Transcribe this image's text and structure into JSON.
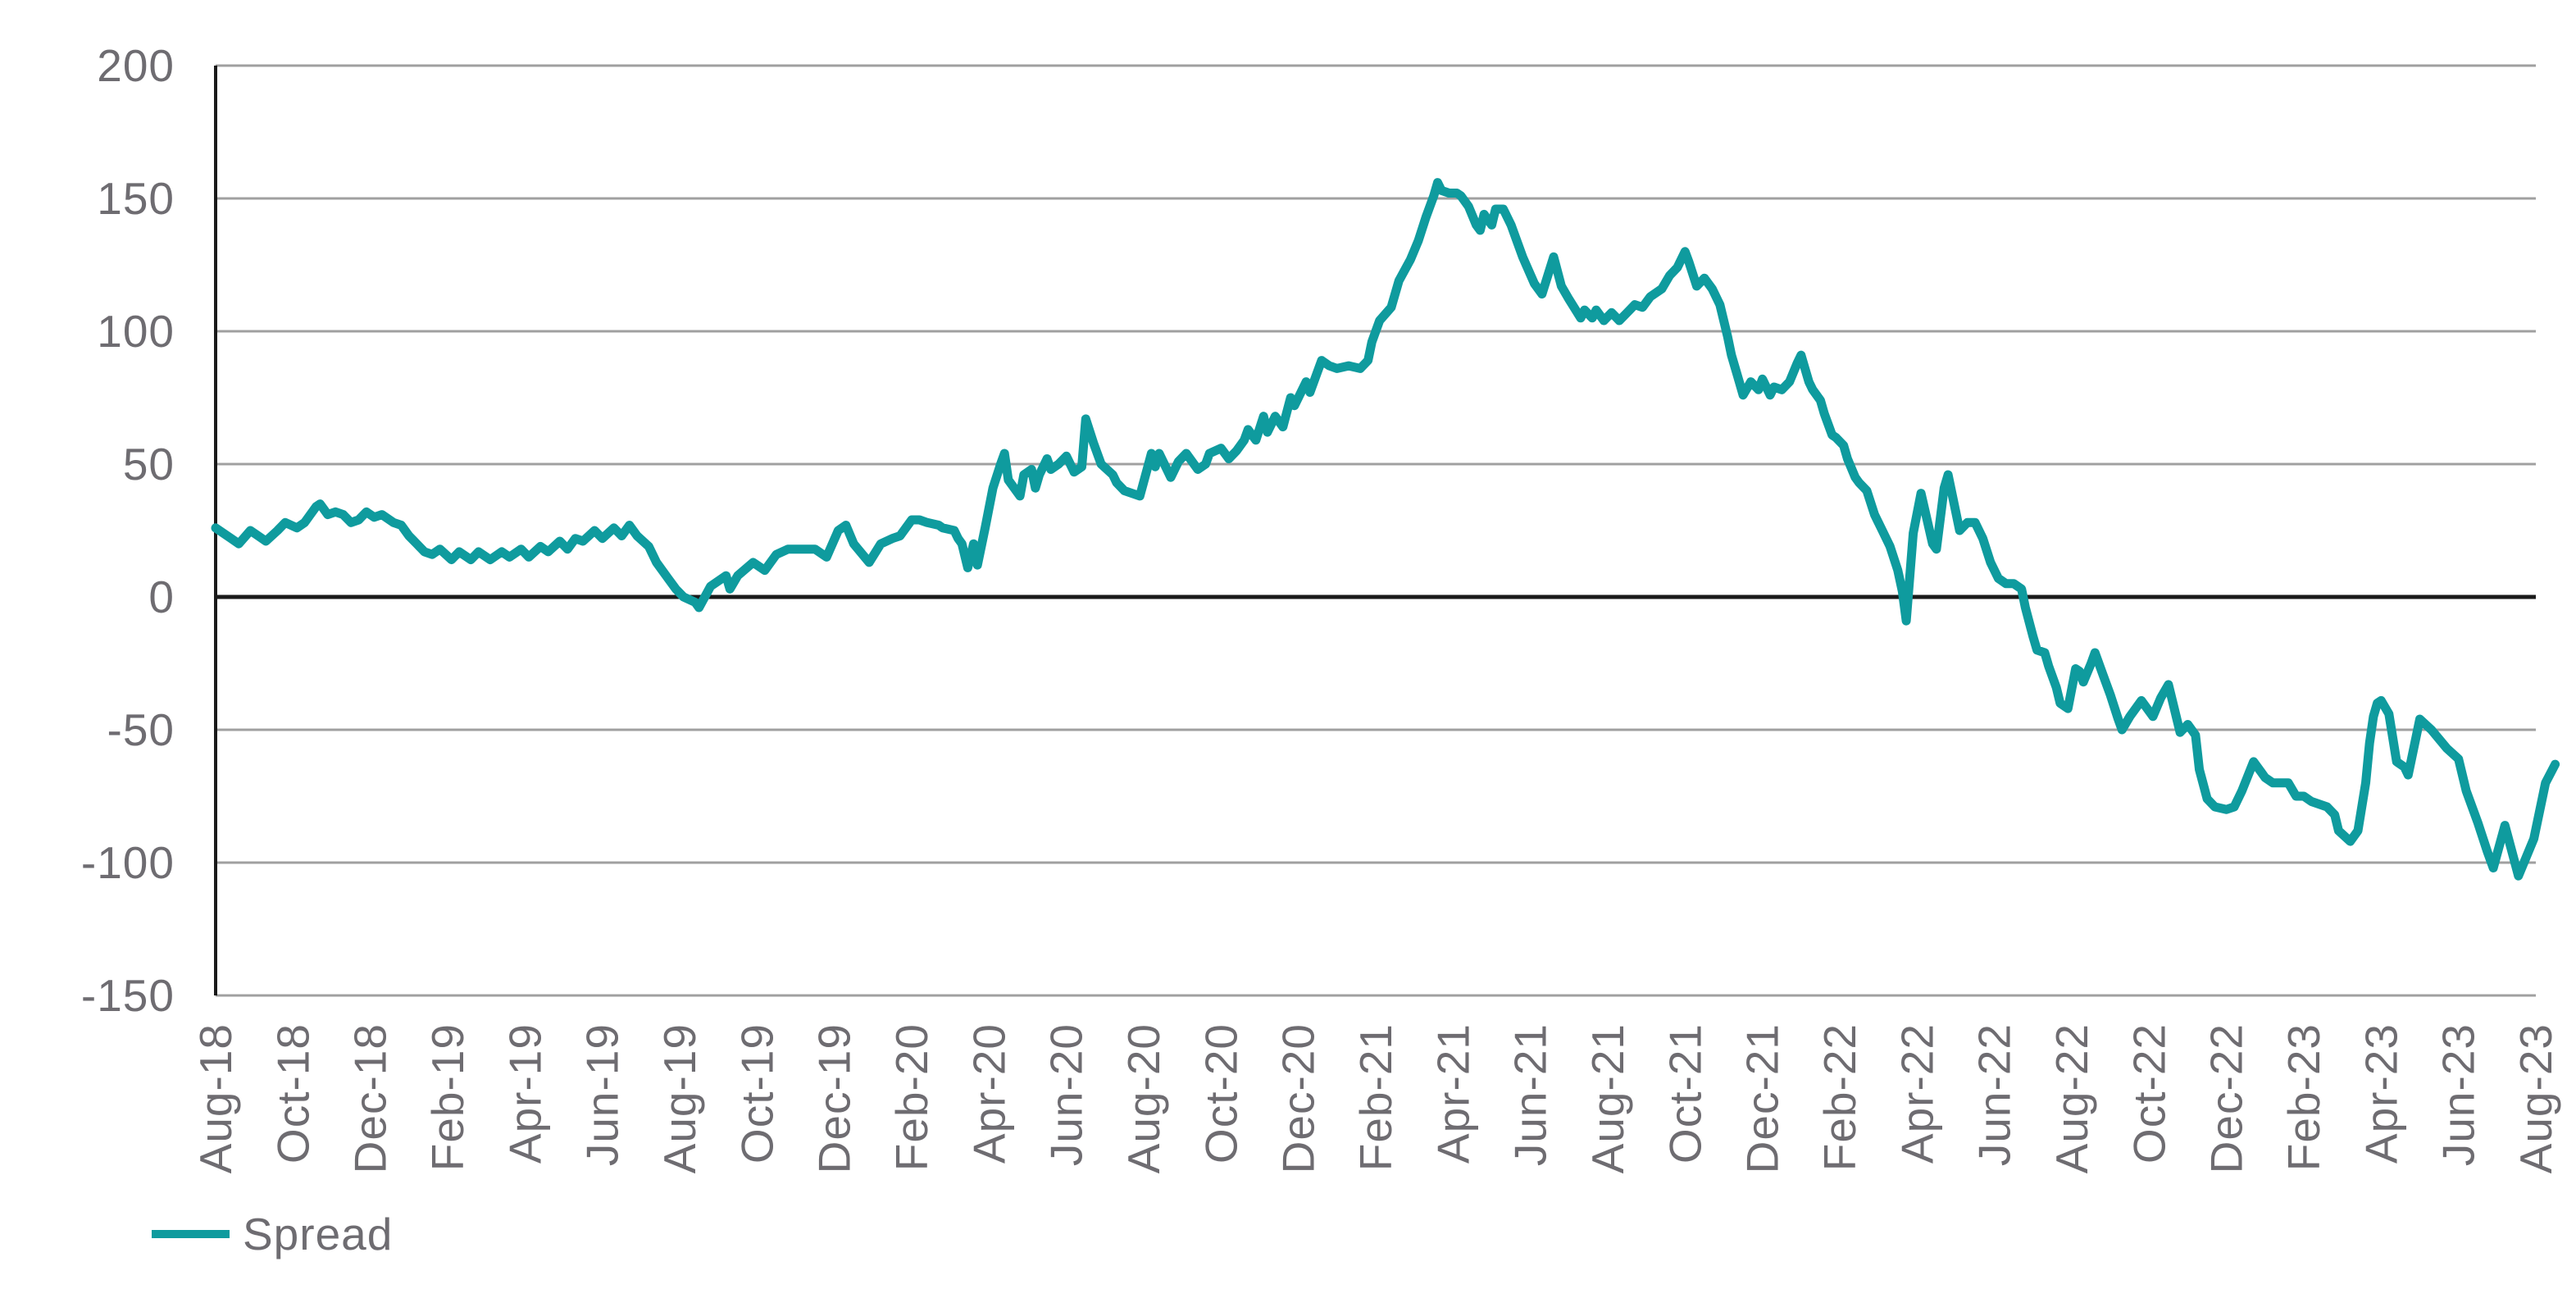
{
  "legend": {
    "items": [
      {
        "label": "Spread",
        "color": "#0F9B9E"
      }
    ],
    "position": "bottom-left"
  },
  "chart_data": {
    "type": "line",
    "title": "",
    "xlabel": "",
    "ylabel": "",
    "x_tick_labels": [
      "Aug-18",
      "Oct-18",
      "Dec-18",
      "Feb-19",
      "Apr-19",
      "Jun-19",
      "Aug-19",
      "Oct-19",
      "Dec-19",
      "Feb-20",
      "Apr-20",
      "Jun-20",
      "Aug-20",
      "Oct-20",
      "Dec-20",
      "Feb-21",
      "Apr-21",
      "Jun-21",
      "Aug-21",
      "Oct-21",
      "Dec-21",
      "Feb-22",
      "Apr-22",
      "Jun-22",
      "Aug-22",
      "Oct-22",
      "Dec-22",
      "Feb-23",
      "Apr-23",
      "Jun-23",
      "Aug-23"
    ],
    "x_tick_step_months": 2,
    "x_range_months": [
      0,
      60
    ],
    "ylim": [
      -150,
      200
    ],
    "y_ticks": [
      200,
      150,
      100,
      50,
      0,
      -50,
      -100,
      -150
    ],
    "grid": "horizontal-gridlines",
    "zero_line": true,
    "legend_position": "bottom-left",
    "style": {
      "line_color": "#0F9B9E",
      "grid_color": "#A0A0A0",
      "zero_line_color": "#1A1A1A",
      "axis_color": "#1A1A1A",
      "tick_label_color": "#6E6C71",
      "background": "#FFFFFF"
    },
    "series": [
      {
        "name": "Spread",
        "color": "#0F9B9E",
        "points_month_value": [
          [
            0,
            26
          ],
          [
            0.4,
            22
          ],
          [
            0.6,
            20
          ],
          [
            0.9,
            25
          ],
          [
            1.1,
            23
          ],
          [
            1.3,
            21
          ],
          [
            1.6,
            25
          ],
          [
            1.8,
            28
          ],
          [
            2.1,
            26
          ],
          [
            2.3,
            28
          ],
          [
            2.6,
            34
          ],
          [
            2.7,
            35
          ],
          [
            2.9,
            31
          ],
          [
            3.1,
            32
          ],
          [
            3.3,
            31
          ],
          [
            3.5,
            28
          ],
          [
            3.7,
            29
          ],
          [
            3.9,
            32
          ],
          [
            4.1,
            30
          ],
          [
            4.3,
            31
          ],
          [
            4.6,
            28
          ],
          [
            4.8,
            27
          ],
          [
            5.0,
            23
          ],
          [
            5.2,
            20
          ],
          [
            5.4,
            17
          ],
          [
            5.6,
            16
          ],
          [
            5.8,
            18
          ],
          [
            6.1,
            14
          ],
          [
            6.3,
            17
          ],
          [
            6.6,
            14
          ],
          [
            6.8,
            17
          ],
          [
            7.1,
            14
          ],
          [
            7.4,
            17
          ],
          [
            7.6,
            15
          ],
          [
            7.9,
            18
          ],
          [
            8.1,
            15
          ],
          [
            8.4,
            19
          ],
          [
            8.6,
            17
          ],
          [
            8.9,
            21
          ],
          [
            9.1,
            18
          ],
          [
            9.3,
            22
          ],
          [
            9.5,
            21
          ],
          [
            9.8,
            25
          ],
          [
            10.0,
            22
          ],
          [
            10.3,
            26
          ],
          [
            10.5,
            23
          ],
          [
            10.7,
            27
          ],
          [
            10.9,
            23
          ],
          [
            11.2,
            19
          ],
          [
            11.4,
            13
          ],
          [
            11.7,
            7
          ],
          [
            11.9,
            3
          ],
          [
            12.1,
            0
          ],
          [
            12.4,
            -2
          ],
          [
            12.5,
            -4
          ],
          [
            12.8,
            4
          ],
          [
            13.2,
            8
          ],
          [
            13.3,
            3
          ],
          [
            13.5,
            8
          ],
          [
            13.9,
            13
          ],
          [
            14.2,
            10
          ],
          [
            14.5,
            16
          ],
          [
            14.8,
            18
          ],
          [
            15.2,
            18
          ],
          [
            15.5,
            18
          ],
          [
            15.8,
            15
          ],
          [
            16.1,
            25
          ],
          [
            16.3,
            27
          ],
          [
            16.5,
            20
          ],
          [
            16.9,
            13
          ],
          [
            17.2,
            20
          ],
          [
            17.5,
            22
          ],
          [
            17.7,
            23
          ],
          [
            18.0,
            29
          ],
          [
            18.2,
            29
          ],
          [
            18.4,
            28
          ],
          [
            18.7,
            27
          ],
          [
            18.8,
            26
          ],
          [
            19.1,
            25
          ],
          [
            19.2,
            22
          ],
          [
            19.3,
            20
          ],
          [
            19.45,
            11
          ],
          [
            19.6,
            20
          ],
          [
            19.7,
            12
          ],
          [
            19.9,
            26
          ],
          [
            20.1,
            41
          ],
          [
            20.3,
            50
          ],
          [
            20.4,
            54
          ],
          [
            20.5,
            44
          ],
          [
            20.8,
            38
          ],
          [
            20.9,
            46
          ],
          [
            21.1,
            48
          ],
          [
            21.2,
            41
          ],
          [
            21.3,
            46
          ],
          [
            21.5,
            52
          ],
          [
            21.6,
            48
          ],
          [
            21.8,
            50
          ],
          [
            22.0,
            53
          ],
          [
            22.2,
            47
          ],
          [
            22.4,
            49
          ],
          [
            22.5,
            67
          ],
          [
            22.7,
            58
          ],
          [
            22.9,
            50
          ],
          [
            23.2,
            46
          ],
          [
            23.3,
            43
          ],
          [
            23.5,
            40
          ],
          [
            23.9,
            38
          ],
          [
            24.2,
            54
          ],
          [
            24.3,
            49
          ],
          [
            24.4,
            54
          ],
          [
            24.7,
            45
          ],
          [
            24.9,
            51
          ],
          [
            25.1,
            54
          ],
          [
            25.4,
            48
          ],
          [
            25.6,
            50
          ],
          [
            25.7,
            54
          ],
          [
            26.0,
            56
          ],
          [
            26.2,
            52
          ],
          [
            26.4,
            55
          ],
          [
            26.6,
            59
          ],
          [
            26.7,
            63
          ],
          [
            26.9,
            59
          ],
          [
            27.1,
            68
          ],
          [
            27.2,
            62
          ],
          [
            27.4,
            68
          ],
          [
            27.6,
            64
          ],
          [
            27.8,
            75
          ],
          [
            27.9,
            72
          ],
          [
            28.2,
            81
          ],
          [
            28.3,
            77
          ],
          [
            28.6,
            89
          ],
          [
            28.8,
            87
          ],
          [
            29.0,
            86
          ],
          [
            29.3,
            87
          ],
          [
            29.6,
            86
          ],
          [
            29.8,
            89
          ],
          [
            29.9,
            96
          ],
          [
            30.0,
            100
          ],
          [
            30.1,
            104
          ],
          [
            30.4,
            109
          ],
          [
            30.6,
            119
          ],
          [
            30.9,
            127
          ],
          [
            31.1,
            134
          ],
          [
            31.3,
            143
          ],
          [
            31.5,
            151
          ],
          [
            31.6,
            156
          ],
          [
            31.7,
            153
          ],
          [
            31.9,
            152
          ],
          [
            32.1,
            152
          ],
          [
            32.2,
            151
          ],
          [
            32.4,
            147
          ],
          [
            32.6,
            140
          ],
          [
            32.7,
            138
          ],
          [
            32.8,
            144
          ],
          [
            33.0,
            140
          ],
          [
            33.1,
            146
          ],
          [
            33.3,
            146
          ],
          [
            33.5,
            140
          ],
          [
            33.6,
            136
          ],
          [
            33.8,
            128
          ],
          [
            34.1,
            118
          ],
          [
            34.3,
            114
          ],
          [
            34.6,
            128
          ],
          [
            34.8,
            117
          ],
          [
            35.0,
            112
          ],
          [
            35.3,
            105
          ],
          [
            35.4,
            108
          ],
          [
            35.6,
            105
          ],
          [
            35.7,
            108
          ],
          [
            35.9,
            104
          ],
          [
            36.1,
            107
          ],
          [
            36.3,
            104
          ],
          [
            36.5,
            107
          ],
          [
            36.7,
            110
          ],
          [
            36.9,
            109
          ],
          [
            37.1,
            113
          ],
          [
            37.4,
            116
          ],
          [
            37.6,
            121
          ],
          [
            37.8,
            124
          ],
          [
            38.0,
            130
          ],
          [
            38.1,
            126
          ],
          [
            38.3,
            117
          ],
          [
            38.5,
            120
          ],
          [
            38.7,
            116
          ],
          [
            38.9,
            110
          ],
          [
            39.1,
            98
          ],
          [
            39.2,
            91
          ],
          [
            39.4,
            81
          ],
          [
            39.5,
            76
          ],
          [
            39.7,
            81
          ],
          [
            39.9,
            78
          ],
          [
            40.0,
            82
          ],
          [
            40.2,
            76
          ],
          [
            40.3,
            79
          ],
          [
            40.5,
            78
          ],
          [
            40.7,
            81
          ],
          [
            40.9,
            88
          ],
          [
            41.0,
            91
          ],
          [
            41.2,
            81
          ],
          [
            41.3,
            78
          ],
          [
            41.5,
            74
          ],
          [
            41.6,
            69
          ],
          [
            41.8,
            61
          ],
          [
            41.9,
            60
          ],
          [
            42.1,
            57
          ],
          [
            42.2,
            52
          ],
          [
            42.4,
            45
          ],
          [
            42.5,
            43
          ],
          [
            42.7,
            40
          ],
          [
            42.9,
            31
          ],
          [
            43.1,
            25
          ],
          [
            43.3,
            19
          ],
          [
            43.5,
            10
          ],
          [
            43.62,
            2
          ],
          [
            43.72,
            -9
          ],
          [
            43.9,
            24
          ],
          [
            44.1,
            39
          ],
          [
            44.4,
            20
          ],
          [
            44.5,
            18
          ],
          [
            44.7,
            41
          ],
          [
            44.8,
            46
          ],
          [
            45.0,
            32
          ],
          [
            45.1,
            25
          ],
          [
            45.3,
            28
          ],
          [
            45.5,
            28
          ],
          [
            45.7,
            22
          ],
          [
            45.9,
            13
          ],
          [
            46.1,
            7
          ],
          [
            46.3,
            5
          ],
          [
            46.5,
            5
          ],
          [
            46.7,
            3
          ],
          [
            46.8,
            -4
          ],
          [
            47.0,
            -15
          ],
          [
            47.1,
            -20
          ],
          [
            47.3,
            -21
          ],
          [
            47.4,
            -26
          ],
          [
            47.6,
            -34
          ],
          [
            47.7,
            -40
          ],
          [
            47.9,
            -42
          ],
          [
            48.1,
            -27
          ],
          [
            48.2,
            -28
          ],
          [
            48.3,
            -32
          ],
          [
            48.5,
            -25
          ],
          [
            48.6,
            -21
          ],
          [
            48.8,
            -29
          ],
          [
            49.0,
            -37
          ],
          [
            49.2,
            -46
          ],
          [
            49.3,
            -50
          ],
          [
            49.5,
            -45
          ],
          [
            49.8,
            -39
          ],
          [
            50.1,
            -45
          ],
          [
            50.3,
            -38
          ],
          [
            50.5,
            -33
          ],
          [
            50.8,
            -51
          ],
          [
            51.0,
            -48
          ],
          [
            51.2,
            -52
          ],
          [
            51.3,
            -65
          ],
          [
            51.5,
            -76
          ],
          [
            51.7,
            -79
          ],
          [
            52.0,
            -80
          ],
          [
            52.2,
            -79
          ],
          [
            52.4,
            -73
          ],
          [
            52.7,
            -62
          ],
          [
            52.9,
            -66
          ],
          [
            53.0,
            -68
          ],
          [
            53.2,
            -70
          ],
          [
            53.6,
            -70
          ],
          [
            53.8,
            -75
          ],
          [
            54.0,
            -75
          ],
          [
            54.2,
            -77
          ],
          [
            54.6,
            -79
          ],
          [
            54.8,
            -82
          ],
          [
            54.9,
            -88
          ],
          [
            55.2,
            -92
          ],
          [
            55.4,
            -88
          ],
          [
            55.6,
            -70
          ],
          [
            55.7,
            -55
          ],
          [
            55.8,
            -45
          ],
          [
            55.9,
            -40
          ],
          [
            56.0,
            -39
          ],
          [
            56.2,
            -44
          ],
          [
            56.4,
            -62
          ],
          [
            56.6,
            -64
          ],
          [
            56.7,
            -67
          ],
          [
            57.0,
            -46
          ],
          [
            57.3,
            -50
          ],
          [
            57.7,
            -57
          ],
          [
            58.0,
            -61
          ],
          [
            58.2,
            -73
          ],
          [
            58.5,
            -85
          ],
          [
            58.75,
            -96
          ],
          [
            58.9,
            -102
          ],
          [
            59.2,
            -86
          ],
          [
            59.55,
            -105
          ],
          [
            59.95,
            -91
          ],
          [
            60.25,
            -70
          ],
          [
            60.5,
            -63
          ]
        ]
      }
    ]
  }
}
